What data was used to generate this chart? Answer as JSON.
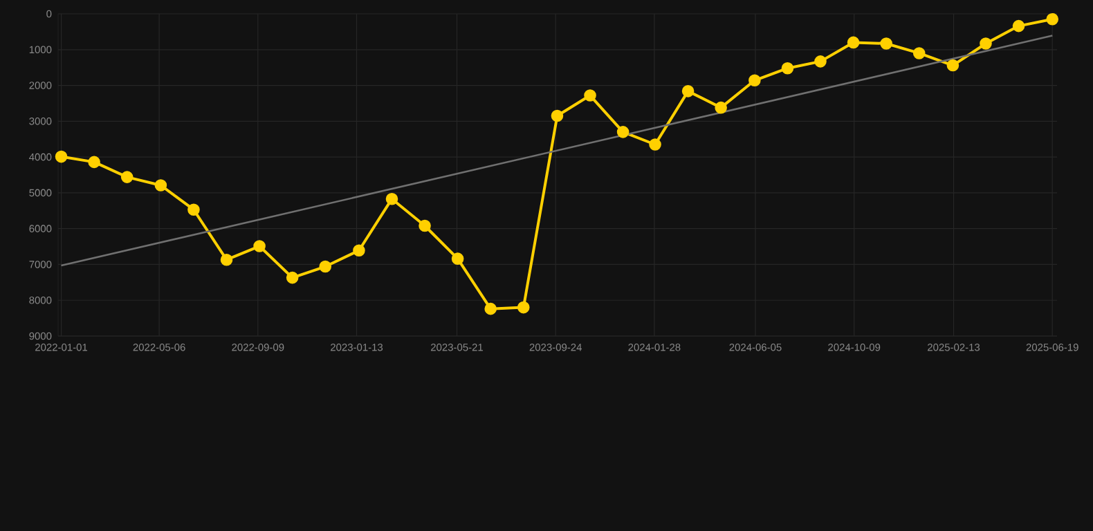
{
  "chart_data": {
    "type": "line",
    "x": [
      "2022-01-01",
      "2022-02-12",
      "2022-03-26",
      "2022-05-08",
      "2022-06-19",
      "2022-07-31",
      "2022-09-11",
      "2022-10-23",
      "2022-12-04",
      "2023-01-16",
      "2023-02-27",
      "2023-04-10",
      "2023-05-22",
      "2023-07-03",
      "2023-08-14",
      "2023-09-26",
      "2023-11-07",
      "2023-12-19",
      "2024-01-29",
      "2024-03-11",
      "2024-04-22",
      "2024-06-04",
      "2024-07-16",
      "2024-08-27",
      "2024-10-08",
      "2024-11-19",
      "2024-12-31",
      "2025-02-12",
      "2025-03-26",
      "2025-05-07",
      "2025-06-19"
    ],
    "series": [
      {
        "color": "#ffd000",
        "marker": "circle",
        "values": [
          3990,
          4140,
          4560,
          4790,
          5470,
          6870,
          6490,
          7370,
          7060,
          6610,
          5170,
          5920,
          6840,
          8240,
          8200,
          2850,
          2280,
          3300,
          3650,
          2160,
          2620,
          1860,
          1520,
          1330,
          800,
          830,
          1100,
          1440,
          830,
          340,
          150
        ]
      },
      {
        "type": "line",
        "color": "#707070",
        "marker": "none",
        "x": [
          "2022-01-01",
          "2025-06-19"
        ],
        "values": [
          7030,
          610
        ]
      }
    ],
    "xlim": [
      "2021-12-28",
      "2025-06-25"
    ],
    "xticks": [
      "2022-01-01",
      "2022-05-06",
      "2022-09-09",
      "2023-01-13",
      "2023-05-21",
      "2023-09-24",
      "2024-01-28",
      "2024-06-05",
      "2024-10-09",
      "2025-02-13",
      "2025-06-19"
    ],
    "ylim": [
      9000,
      0
    ],
    "yticks": [
      0,
      1000,
      2000,
      3000,
      4000,
      5000,
      6000,
      7000,
      8000,
      9000
    ],
    "grid": true,
    "line_style": "solid"
  }
}
